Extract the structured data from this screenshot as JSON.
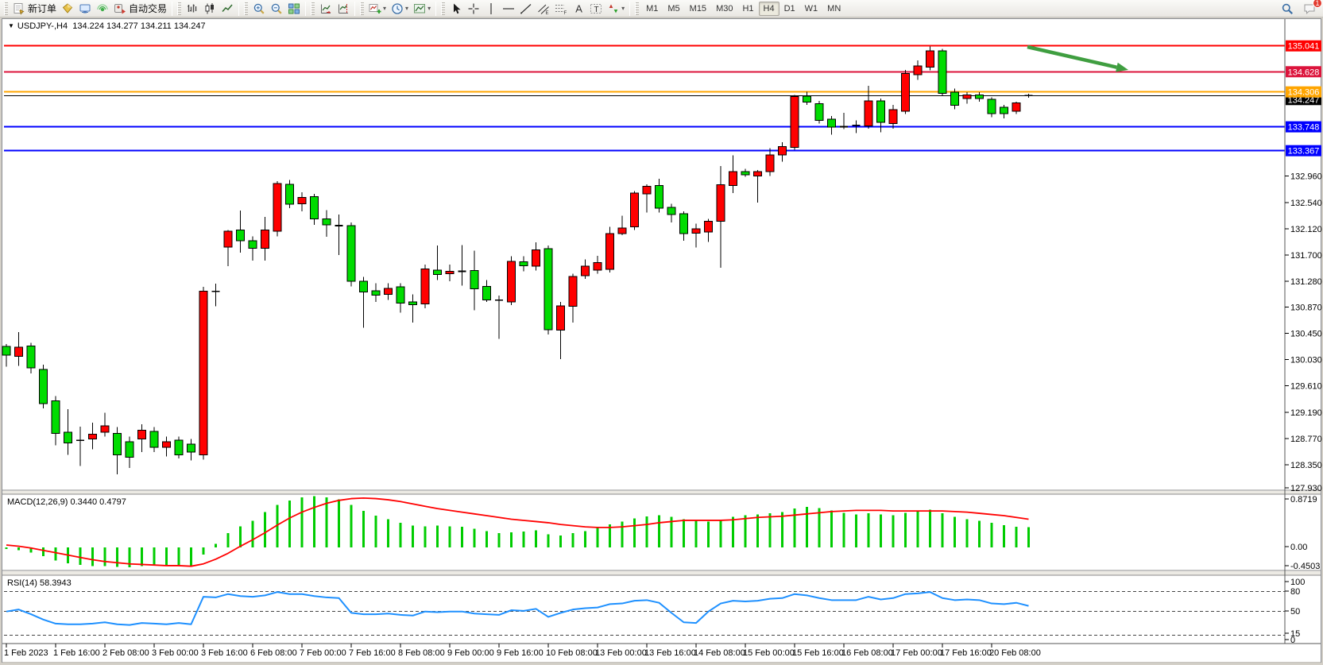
{
  "toolbar": {
    "groups": [
      {
        "items": [
          {
            "name": "new-order-button",
            "icon": "neworder",
            "label": "新订单"
          },
          {
            "name": "market-depth-button",
            "icon": "depth"
          },
          {
            "name": "publisher-button",
            "icon": "publisher"
          },
          {
            "name": "signals-button",
            "icon": "signals"
          },
          {
            "name": "autotrading-button",
            "icon": "autotrade",
            "label": "自动交易"
          }
        ]
      },
      {
        "items": [
          {
            "name": "bar-chart-button",
            "icon": "bars"
          },
          {
            "name": "candlestick-chart-button",
            "icon": "candles"
          },
          {
            "name": "line-chart-button",
            "icon": "linechart"
          }
        ]
      },
      {
        "items": [
          {
            "name": "zoom-in-button",
            "icon": "zoomin"
          },
          {
            "name": "zoom-out-button",
            "icon": "zoomout"
          },
          {
            "name": "tile-windows-button",
            "icon": "tile"
          }
        ]
      },
      {
        "items": [
          {
            "name": "auto-scroll-button",
            "icon": "autoscroll"
          },
          {
            "name": "chart-shift-button",
            "icon": "shift"
          }
        ]
      },
      {
        "items": [
          {
            "name": "indicators-button",
            "icon": "addind",
            "caret": true
          },
          {
            "name": "periods-button",
            "icon": "clock",
            "caret": true
          },
          {
            "name": "templates-button",
            "icon": "template",
            "caret": true
          }
        ]
      },
      {
        "items": [
          {
            "name": "cursor-button",
            "icon": "cursor"
          },
          {
            "name": "crosshair-button",
            "icon": "crosshair"
          },
          {
            "name": "vertical-line-button",
            "icon": "vline"
          },
          {
            "name": "horizontal-line-button",
            "icon": "hline"
          },
          {
            "name": "trendline-button",
            "icon": "trend"
          },
          {
            "name": "equidistant-channel-button",
            "icon": "channel"
          },
          {
            "name": "fibonacci-button",
            "icon": "fibo"
          },
          {
            "name": "text-button",
            "icon": "textA"
          },
          {
            "name": "text-label-button",
            "icon": "labelT"
          },
          {
            "name": "arrows-button",
            "icon": "arrows",
            "caret": true
          }
        ]
      },
      {
        "items": [
          {
            "name": "tf-m1-button",
            "tf": "M1"
          },
          {
            "name": "tf-m5-button",
            "tf": "M5"
          },
          {
            "name": "tf-m15-button",
            "tf": "M15"
          },
          {
            "name": "tf-m30-button",
            "tf": "M30"
          },
          {
            "name": "tf-h1-button",
            "tf": "H1"
          },
          {
            "name": "tf-h4-button",
            "tf": "H4",
            "active": true
          },
          {
            "name": "tf-d1-button",
            "tf": "D1"
          },
          {
            "name": "tf-w1-button",
            "tf": "W1"
          },
          {
            "name": "tf-mn-button",
            "tf": "MN"
          }
        ]
      }
    ],
    "right_icons": [
      {
        "name": "search-icon-button",
        "icon": "search"
      },
      {
        "name": "notifications-button",
        "icon": "chat",
        "badge": "1"
      }
    ]
  },
  "chart": {
    "title": {
      "symbol_period": "USDJPY-,H4",
      "quote": "134.224 134.277 134.211 134.247"
    },
    "colors": {
      "background": "#FFFFFF",
      "foreground": "#000000",
      "up_candle": "#FF0000",
      "down_candle": "#00DC00",
      "candle_border": "#000000",
      "grid": "#C8C8C8"
    },
    "price_axis_ticks": [
      "132.960",
      "132.540",
      "132.120",
      "131.700",
      "131.280",
      "130.870",
      "130.450",
      "130.030",
      "129.610",
      "129.190",
      "128.770",
      "128.350",
      "127.930"
    ],
    "time_axis_labels": [
      "1 Feb 2023",
      "1 Feb 16:00",
      "2 Feb 08:00",
      "3 Feb 00:00",
      "3 Feb 16:00",
      "6 Feb 08:00",
      "7 Feb 00:00",
      "7 Feb 16:00",
      "8 Feb 08:00",
      "9 Feb 00:00",
      "9 Feb 16:00",
      "10 Feb 08:00",
      "13 Feb 00:00",
      "13 Feb 16:00",
      "14 Feb 08:00",
      "15 Feb 00:00",
      "15 Feb 16:00",
      "16 Feb 08:00",
      "17 Feb 00:00",
      "17 Feb 16:00",
      "20 Feb 08:00"
    ],
    "levels": [
      {
        "label": "135.041",
        "price": 135.041,
        "color": "#FF0000"
      },
      {
        "label": "134.628",
        "price": 134.628,
        "color": "#DC143C"
      },
      {
        "label": "134.306",
        "price": 134.306,
        "color": "#FFA500"
      },
      {
        "label": "133.748",
        "price": 133.748,
        "color": "#0000FF"
      },
      {
        "label": "133.367",
        "price": 133.367,
        "color": "#0000FF"
      }
    ],
    "current_price": {
      "label": "134.247",
      "price": 134.247,
      "color": "#000000"
    },
    "annotation_arrow": {
      "from": [
        1293,
        59
      ],
      "to": [
        1420,
        88
      ],
      "color": "#3F9E40"
    },
    "chart_data": {
      "type": "candlestick",
      "symbol": "USDJPY",
      "period": "H4",
      "note": "red = bullish, green = bearish (CN color convention)",
      "candles": [
        [
          130.24,
          130.28,
          129.92,
          130.1
        ],
        [
          130.08,
          130.47,
          129.93,
          130.23
        ],
        [
          130.25,
          130.3,
          129.81,
          129.9
        ],
        [
          129.87,
          129.95,
          129.25,
          129.33
        ],
        [
          129.37,
          129.45,
          128.66,
          128.85
        ],
        [
          128.87,
          129.24,
          128.51,
          128.7
        ],
        [
          128.76,
          128.96,
          128.33,
          128.74
        ],
        [
          128.76,
          129.02,
          128.6,
          128.84
        ],
        [
          128.87,
          129.18,
          128.8,
          128.97
        ],
        [
          128.85,
          128.95,
          128.2,
          128.51
        ],
        [
          128.72,
          128.8,
          128.3,
          128.47
        ],
        [
          128.76,
          129.0,
          128.55,
          128.9
        ],
        [
          128.88,
          128.95,
          128.55,
          128.63
        ],
        [
          128.63,
          128.8,
          128.48,
          128.72
        ],
        [
          128.74,
          128.8,
          128.45,
          128.51
        ],
        [
          128.68,
          128.76,
          128.42,
          128.55
        ],
        [
          128.51,
          131.19,
          128.43,
          131.12
        ],
        [
          131.1,
          131.24,
          130.88,
          131.12
        ],
        [
          131.83,
          132.1,
          131.52,
          132.08
        ],
        [
          132.1,
          132.41,
          131.74,
          131.93
        ],
        [
          131.93,
          132.0,
          131.61,
          131.81
        ],
        [
          131.81,
          132.31,
          131.61,
          132.1
        ],
        [
          132.08,
          132.88,
          132.0,
          132.84
        ],
        [
          132.83,
          132.9,
          132.45,
          132.51
        ],
        [
          132.52,
          132.7,
          132.4,
          132.62
        ],
        [
          132.63,
          132.68,
          132.18,
          132.28
        ],
        [
          132.28,
          132.42,
          131.99,
          132.18
        ],
        [
          132.17,
          132.35,
          131.7,
          132.17
        ],
        [
          132.17,
          132.22,
          131.2,
          131.28
        ],
        [
          131.28,
          131.35,
          130.54,
          131.11
        ],
        [
          131.13,
          131.25,
          130.95,
          131.06
        ],
        [
          131.07,
          131.25,
          130.98,
          131.17
        ],
        [
          131.19,
          131.25,
          130.78,
          130.93
        ],
        [
          130.95,
          131.07,
          130.62,
          130.91
        ],
        [
          130.92,
          131.55,
          130.85,
          131.48
        ],
        [
          131.46,
          131.85,
          131.3,
          131.39
        ],
        [
          131.4,
          131.55,
          131.28,
          131.44
        ],
        [
          131.44,
          131.86,
          131.21,
          131.44
        ],
        [
          131.45,
          131.77,
          130.82,
          131.16
        ],
        [
          131.2,
          131.3,
          130.95,
          130.98
        ],
        [
          131.0,
          131.05,
          130.36,
          130.98
        ],
        [
          130.95,
          131.68,
          130.9,
          131.6
        ],
        [
          131.59,
          131.68,
          131.44,
          131.53
        ],
        [
          131.52,
          131.9,
          131.45,
          131.78
        ],
        [
          131.8,
          131.85,
          130.43,
          130.51
        ],
        [
          130.5,
          130.95,
          130.04,
          130.89
        ],
        [
          130.88,
          131.4,
          130.62,
          131.36
        ],
        [
          131.37,
          131.63,
          131.32,
          131.52
        ],
        [
          131.46,
          131.69,
          131.4,
          131.58
        ],
        [
          131.47,
          132.15,
          131.42,
          132.04
        ],
        [
          132.04,
          132.33,
          132.02,
          132.13
        ],
        [
          132.15,
          132.72,
          132.1,
          132.69
        ],
        [
          132.68,
          132.83,
          132.38,
          132.8
        ],
        [
          132.81,
          132.92,
          132.38,
          132.45
        ],
        [
          132.46,
          132.52,
          132.22,
          132.35
        ],
        [
          132.36,
          132.4,
          131.93,
          132.04
        ],
        [
          132.05,
          132.2,
          131.82,
          132.12
        ],
        [
          132.07,
          132.28,
          131.91,
          132.24
        ],
        [
          132.24,
          133.12,
          131.5,
          132.82
        ],
        [
          132.81,
          133.29,
          132.69,
          133.03
        ],
        [
          133.03,
          133.08,
          132.95,
          132.98
        ],
        [
          132.96,
          133.06,
          132.54,
          133.03
        ],
        [
          133.03,
          133.41,
          132.96,
          133.3
        ],
        [
          133.3,
          133.5,
          133.19,
          133.43
        ],
        [
          133.42,
          134.26,
          133.38,
          134.23
        ],
        [
          134.24,
          134.31,
          134.1,
          134.14
        ],
        [
          134.12,
          134.16,
          133.8,
          133.85
        ],
        [
          133.87,
          133.92,
          133.62,
          133.74
        ],
        [
          133.75,
          133.97,
          133.71,
          133.75
        ],
        [
          133.76,
          133.85,
          133.65,
          133.77
        ],
        [
          133.76,
          134.4,
          133.72,
          134.16
        ],
        [
          134.16,
          134.2,
          133.66,
          133.82
        ],
        [
          133.8,
          134.1,
          133.72,
          134.02
        ],
        [
          134.0,
          134.66,
          133.95,
          134.6
        ],
        [
          134.58,
          134.81,
          134.5,
          134.72
        ],
        [
          134.7,
          135.03,
          134.65,
          134.96
        ],
        [
          134.96,
          134.99,
          134.25,
          134.28
        ],
        [
          134.3,
          134.36,
          134.03,
          134.09
        ],
        [
          134.2,
          134.3,
          134.12,
          134.26
        ],
        [
          134.26,
          134.3,
          134.15,
          134.2
        ],
        [
          134.19,
          134.22,
          133.9,
          133.96
        ],
        [
          134.06,
          134.1,
          133.88,
          133.96
        ],
        [
          134.0,
          134.15,
          133.95,
          134.13
        ],
        [
          134.224,
          134.277,
          134.211,
          134.247
        ]
      ]
    }
  },
  "indicators": {
    "macd": {
      "label": "MACD(12,26,9) 0.3440 0.4797",
      "axis_labels": [
        "0.8719",
        "0.00",
        "-0.4503"
      ],
      "histogram_color": "#00CC00",
      "signal_color": "#FF0000",
      "histogram": [
        -0.03,
        -0.05,
        -0.09,
        -0.15,
        -0.22,
        -0.27,
        -0.3,
        -0.32,
        -0.32,
        -0.33,
        -0.34,
        -0.32,
        -0.31,
        -0.3,
        -0.3,
        -0.31,
        -0.12,
        0.06,
        0.24,
        0.36,
        0.45,
        0.6,
        0.72,
        0.8,
        0.85,
        0.87,
        0.85,
        0.82,
        0.72,
        0.62,
        0.54,
        0.48,
        0.42,
        0.37,
        0.36,
        0.37,
        0.36,
        0.35,
        0.32,
        0.28,
        0.24,
        0.26,
        0.27,
        0.29,
        0.22,
        0.2,
        0.24,
        0.28,
        0.33,
        0.39,
        0.44,
        0.49,
        0.53,
        0.55,
        0.52,
        0.48,
        0.45,
        0.44,
        0.47,
        0.52,
        0.55,
        0.56,
        0.58,
        0.6,
        0.66,
        0.69,
        0.67,
        0.63,
        0.59,
        0.56,
        0.58,
        0.56,
        0.55,
        0.59,
        0.62,
        0.64,
        0.58,
        0.52,
        0.48,
        0.45,
        0.42,
        0.38,
        0.35,
        0.344
      ],
      "signal": [
        0.04,
        0.02,
        -0.01,
        -0.05,
        -0.09,
        -0.13,
        -0.17,
        -0.21,
        -0.24,
        -0.26,
        -0.28,
        -0.29,
        -0.3,
        -0.31,
        -0.31,
        -0.32,
        -0.28,
        -0.2,
        -0.1,
        0.02,
        0.13,
        0.25,
        0.38,
        0.5,
        0.6,
        0.68,
        0.75,
        0.8,
        0.83,
        0.84,
        0.83,
        0.81,
        0.78,
        0.74,
        0.7,
        0.66,
        0.63,
        0.6,
        0.57,
        0.54,
        0.51,
        0.48,
        0.46,
        0.44,
        0.42,
        0.39,
        0.37,
        0.35,
        0.34,
        0.34,
        0.35,
        0.37,
        0.39,
        0.42,
        0.44,
        0.46,
        0.46,
        0.46,
        0.46,
        0.47,
        0.49,
        0.51,
        0.52,
        0.53,
        0.55,
        0.57,
        0.59,
        0.61,
        0.62,
        0.63,
        0.63,
        0.63,
        0.62,
        0.62,
        0.62,
        0.62,
        0.62,
        0.61,
        0.6,
        0.58,
        0.56,
        0.54,
        0.51,
        0.48
      ]
    },
    "rsi": {
      "label": "RSI(14) 58.3943",
      "axis_labels": [
        "100",
        "80",
        "50",
        "15",
        "0"
      ],
      "level_lines": [
        80,
        50,
        15
      ],
      "line_color": "#1E90FF",
      "values": [
        50,
        53,
        46,
        38,
        32,
        31,
        31,
        32,
        34,
        31,
        30,
        33,
        32,
        31,
        33,
        31,
        72,
        71,
        76,
        73,
        72,
        74,
        79,
        76,
        76,
        73,
        71,
        70,
        48,
        46,
        46,
        47,
        45,
        44,
        50,
        49,
        50,
        50,
        47,
        46,
        45,
        52,
        51,
        54,
        42,
        48,
        53,
        55,
        56,
        61,
        62,
        66,
        67,
        63,
        48,
        34,
        33,
        50,
        62,
        66,
        65,
        66,
        69,
        70,
        76,
        74,
        70,
        67,
        67,
        67,
        72,
        68,
        70,
        76,
        77,
        79,
        70,
        67,
        68,
        67,
        62,
        61,
        63,
        58.4
      ]
    }
  }
}
